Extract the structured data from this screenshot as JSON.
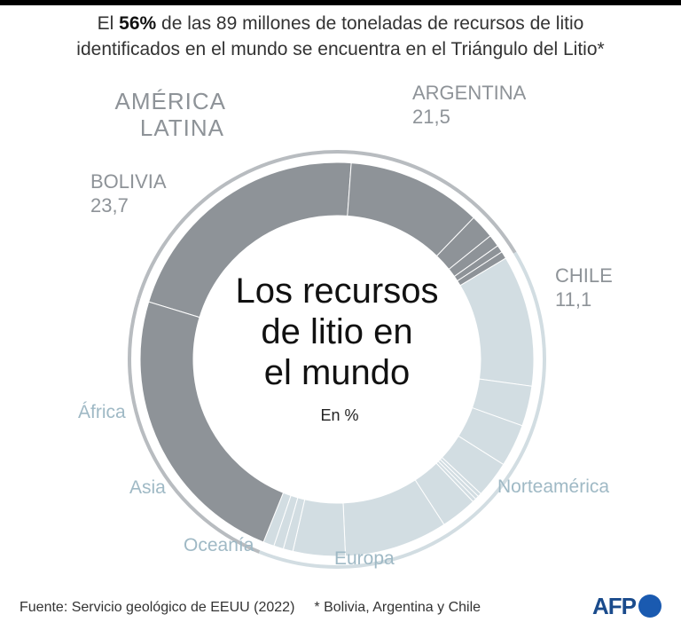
{
  "header": {
    "subtitle_pre": "El ",
    "subtitle_bold": "56%",
    "subtitle_line1_rest": " de las 89 millones de toneladas de recursos de litio",
    "subtitle_line2": "identificados en el mundo se encuentra en el Triángulo del Litio*"
  },
  "center": {
    "title_lines": [
      "Los recursos",
      "de litio en",
      "el mundo"
    ],
    "unit": "En %"
  },
  "group_labels": {
    "latam_line1": "AMÉRICA",
    "latam_line2": "LATINA"
  },
  "region_labels": {
    "africa": "África",
    "asia": "Asia",
    "oceania": "Oceanía",
    "europa": "Europa",
    "norteamerica": "Norteamérica"
  },
  "colors": {
    "latam": "#8e9398",
    "rest": "#d2dde2",
    "outer_ring": "#b8bcc0",
    "label_grey": "#8e9398",
    "label_blue": "#9fb9c5"
  },
  "chart_data": {
    "type": "donut",
    "unit": "%",
    "series": [
      {
        "name": "ARGENTINA",
        "value": 21.5,
        "labeled": true,
        "group": "latam"
      },
      {
        "name": "CHILE",
        "value": 11.1,
        "labeled": true,
        "group": "latam"
      },
      {
        "value": 2.0,
        "group": "latam"
      },
      {
        "value": 1.0,
        "group": "latam"
      },
      {
        "value": 0.6,
        "group": "latam"
      },
      {
        "value": 0.6,
        "group": "latam"
      },
      {
        "value": 10.8,
        "group": "rest"
      },
      {
        "value": 3.3,
        "group": "rest"
      },
      {
        "value": 3.5,
        "group": "rest"
      },
      {
        "value": 3.0,
        "group": "rest"
      },
      {
        "value": 0.3,
        "group": "rest"
      },
      {
        "value": 0.3,
        "group": "rest"
      },
      {
        "value": 0.3,
        "group": "rest"
      },
      {
        "value": 3.0,
        "group": "rest"
      },
      {
        "value": 8.5,
        "group": "rest"
      },
      {
        "value": 4.3,
        "group": "rest"
      },
      {
        "value": 0.8,
        "group": "rest"
      },
      {
        "value": 0.8,
        "group": "rest"
      },
      {
        "value": 0.9,
        "group": "rest"
      },
      {
        "name": "BOLIVIA",
        "value": 23.7,
        "labeled": true,
        "group": "latam"
      }
    ]
  }
}
